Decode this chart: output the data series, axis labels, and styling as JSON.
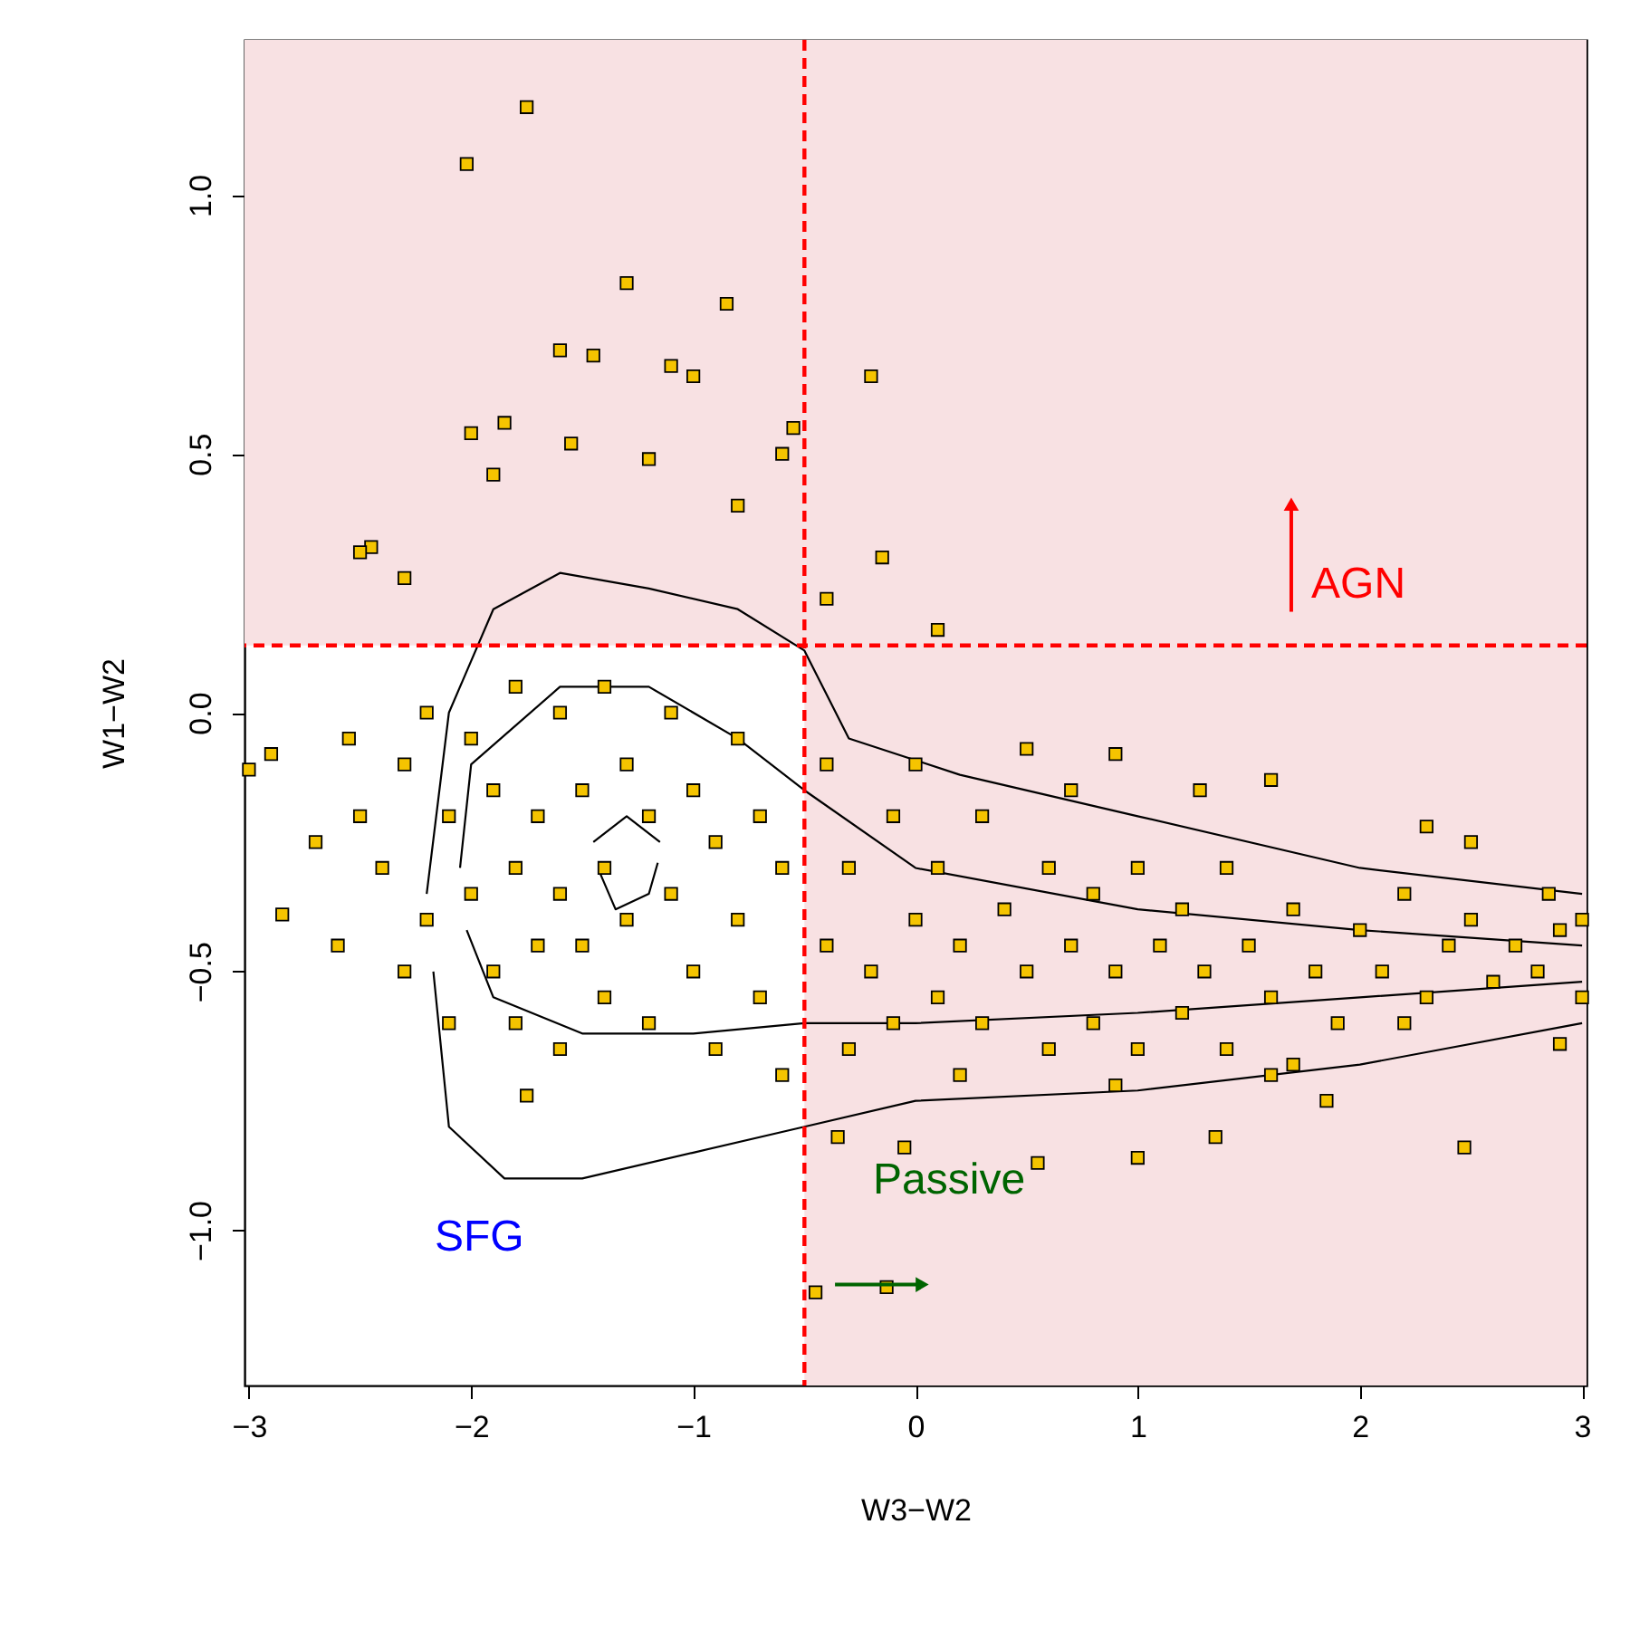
{
  "chart_data": {
    "type": "scatter",
    "xlabel": "W3−W2",
    "ylabel": "W1−W2",
    "xlim": [
      -3.02,
      3.02
    ],
    "ylim": [
      -1.3,
      1.3
    ],
    "xticks": [
      {
        "value": -3,
        "label": "−3"
      },
      {
        "value": -2,
        "label": "−2"
      },
      {
        "value": -1,
        "label": "−1"
      },
      0,
      1,
      2,
      3
    ],
    "yticks": [
      {
        "value": -1,
        "label": "−1.0"
      },
      {
        "value": -0.5,
        "label": "−0.5"
      },
      {
        "value": 0,
        "label": "0.0"
      },
      {
        "value": 0.5,
        "label": "0.5"
      },
      {
        "value": 1,
        "label": "1.0"
      }
    ],
    "grid": false,
    "marker": "square",
    "ref_lines": [
      {
        "axis": "x",
        "value": -0.5,
        "color": "#ff0000",
        "line_style": "dashed"
      },
      {
        "axis": "y",
        "value": 0.13,
        "color": "#ff0000",
        "line_style": "dashed"
      }
    ],
    "bands": [
      {
        "axis": "x",
        "from": -0.5,
        "to": 3.02,
        "color": "#f8e1e3"
      },
      {
        "axis": "y",
        "from": 0.13,
        "to": 1.3,
        "color": "#f8e1e3"
      }
    ],
    "annotations": [
      "AGN",
      "SFG",
      "Passive"
    ],
    "series": [
      {
        "type": "line",
        "color": "#000000",
        "marker": "none",
        "x": [
          -2.2,
          -2.1,
          -1.9,
          -1.6,
          -1.2,
          -0.8,
          -0.5,
          -0.3,
          0.2,
          1.0,
          2.0,
          3.0
        ],
        "values": [
          -0.35,
          0.0,
          0.2,
          0.27,
          0.24,
          0.2,
          0.12,
          -0.05,
          -0.12,
          -0.2,
          -0.3,
          -0.35
        ]
      },
      {
        "type": "line",
        "color": "#000000",
        "marker": "none",
        "x": [
          -2.17,
          -2.1,
          -1.85,
          -1.5,
          -1.0,
          -0.5,
          0.0,
          1.0,
          2.0,
          3.0
        ],
        "values": [
          -0.5,
          -0.8,
          -0.9,
          -0.9,
          -0.85,
          -0.8,
          -0.75,
          -0.73,
          -0.68,
          -0.6
        ]
      },
      {
        "type": "line",
        "color": "#000000",
        "marker": "none",
        "x": [
          -2.05,
          -2.0,
          -1.6,
          -1.2,
          -0.8,
          -0.5,
          0.0,
          1.0,
          2.0,
          3.0
        ],
        "values": [
          -0.3,
          -0.1,
          0.05,
          0.05,
          -0.05,
          -0.15,
          -0.3,
          -0.38,
          -0.42,
          -0.45
        ]
      },
      {
        "type": "line",
        "color": "#000000",
        "marker": "none",
        "x": [
          -2.02,
          -1.9,
          -1.5,
          -1.0,
          -0.5,
          0.0,
          1.0,
          2.0,
          3.0
        ],
        "values": [
          -0.42,
          -0.55,
          -0.62,
          -0.62,
          -0.6,
          -0.6,
          -0.58,
          -0.55,
          -0.52
        ]
      },
      {
        "type": "line",
        "color": "#000000",
        "marker": "none",
        "x": [
          -1.45,
          -1.3,
          -1.15
        ],
        "values": [
          -0.25,
          -0.2,
          -0.25
        ]
      },
      {
        "type": "line",
        "color": "#000000",
        "marker": "none",
        "x": [
          -1.42,
          -1.35,
          -1.2,
          -1.16
        ],
        "values": [
          -0.31,
          -0.38,
          -0.35,
          -0.29
        ]
      },
      {
        "color": "#f5c400",
        "x": [
          -1.75,
          -2.02,
          -1.3,
          -0.85,
          -1.6,
          -1.45,
          -1.1,
          -1.0,
          -0.2,
          -1.85,
          -1.55,
          -2.0,
          -1.2,
          -0.55,
          -2.45,
          -2.5,
          -2.3,
          -0.15,
          -0.8,
          -1.9,
          -0.6,
          -0.4,
          0.1,
          -0.45,
          -0.13,
          2.47,
          1.0,
          1.35,
          1.85,
          1.7,
          -1.75,
          -2.9,
          -3.0,
          -2.85,
          -2.7,
          1.6,
          1.28,
          0.5,
          0.9,
          2.3,
          2.5,
          2.85,
          3.0,
          3.0,
          2.9,
          2.2,
          0.55,
          -0.05,
          -0.35,
          -2.4,
          -2.3,
          -2.3,
          -2.2,
          -2.2,
          -2.1,
          -2.1,
          -2.0,
          -2.0,
          -1.9,
          -1.9,
          -1.8,
          -1.8,
          -1.8,
          -1.7,
          -1.7,
          -1.6,
          -1.6,
          -1.6,
          -1.5,
          -1.5,
          -1.4,
          -1.4,
          -1.4,
          -1.3,
          -1.3,
          -1.2,
          -1.2,
          -1.1,
          -1.1,
          -1.0,
          -1.0,
          -0.9,
          -0.9,
          -0.8,
          -0.8,
          -0.7,
          -0.7,
          -0.6,
          -0.6,
          -2.5,
          -2.6,
          -2.55,
          -0.4,
          -0.4,
          -0.3,
          -0.3,
          -0.2,
          -0.1,
          -0.1,
          0.0,
          0.1,
          0.1,
          0.2,
          0.3,
          0.3,
          0.4,
          0.5,
          0.6,
          0.6,
          0.7,
          0.8,
          0.8,
          0.9,
          1.0,
          1.0,
          1.1,
          1.2,
          1.2,
          1.3,
          1.4,
          1.4,
          1.5,
          1.6,
          1.7,
          1.8,
          1.9,
          2.0,
          2.1,
          2.2,
          2.3,
          2.4,
          2.5,
          2.6,
          2.7,
          2.8,
          2.9,
          0.2,
          0.9,
          1.6,
          0.0,
          0.7
        ],
        "values": [
          1.17,
          1.06,
          0.83,
          0.79,
          0.7,
          0.69,
          0.67,
          0.65,
          0.65,
          0.56,
          0.52,
          0.54,
          0.49,
          0.55,
          0.32,
          0.31,
          0.26,
          0.3,
          0.4,
          0.46,
          0.5,
          0.22,
          0.16,
          -1.12,
          -1.11,
          -0.84,
          -0.86,
          -0.82,
          -0.75,
          -0.68,
          -0.74,
          -0.08,
          -0.11,
          -0.39,
          -0.25,
          -0.13,
          -0.15,
          -0.07,
          -0.08,
          -0.22,
          -0.25,
          -0.35,
          -0.4,
          -0.55,
          -0.64,
          -0.6,
          -0.87,
          -0.84,
          -0.82,
          -0.3,
          -0.1,
          -0.5,
          0.0,
          -0.4,
          -0.2,
          -0.6,
          -0.05,
          -0.35,
          -0.15,
          -0.5,
          0.05,
          -0.3,
          -0.6,
          -0.2,
          -0.45,
          0.0,
          -0.35,
          -0.65,
          -0.15,
          -0.45,
          0.05,
          -0.3,
          -0.55,
          -0.1,
          -0.4,
          -0.2,
          -0.6,
          0.0,
          -0.35,
          -0.15,
          -0.5,
          -0.25,
          -0.65,
          -0.05,
          -0.4,
          -0.2,
          -0.55,
          -0.3,
          -0.7,
          -0.2,
          -0.45,
          -0.05,
          -0.1,
          -0.45,
          -0.3,
          -0.65,
          -0.5,
          -0.2,
          -0.6,
          -0.4,
          -0.3,
          -0.55,
          -0.45,
          -0.2,
          -0.6,
          -0.38,
          -0.5,
          -0.3,
          -0.65,
          -0.45,
          -0.35,
          -0.6,
          -0.5,
          -0.3,
          -0.65,
          -0.45,
          -0.38,
          -0.58,
          -0.5,
          -0.3,
          -0.65,
          -0.45,
          -0.55,
          -0.38,
          -0.5,
          -0.6,
          -0.42,
          -0.5,
          -0.35,
          -0.55,
          -0.45,
          -0.4,
          -0.52,
          -0.45,
          -0.5,
          -0.42,
          -0.7,
          -0.72,
          -0.7,
          -0.1,
          -0.15
        ]
      }
    ]
  }
}
